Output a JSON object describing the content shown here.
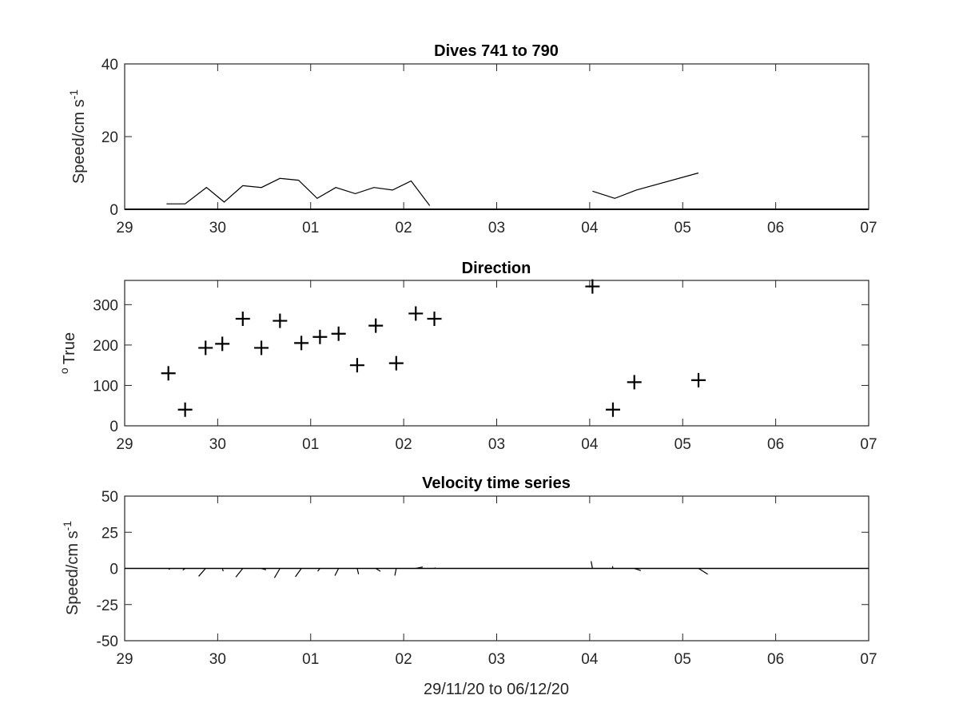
{
  "x_axis_label": "29/11/20 to 06/12/20",
  "x_tick_labels": [
    "29",
    "30",
    "01",
    "02",
    "03",
    "04",
    "05",
    "06",
    "07"
  ],
  "chart_data": [
    {
      "type": "line",
      "title": "Dives 741 to 790",
      "ylabel": "Speed/cm s",
      "ylabel_superscript": "-1",
      "xlim": [
        0,
        8
      ],
      "ylim": [
        0,
        40
      ],
      "yticks": [
        0,
        20,
        40
      ],
      "grid": false,
      "x_unit": "days from 29 Nov 2020",
      "series": [
        {
          "x": [
            0.45,
            0.65,
            0.88,
            1.07,
            1.27,
            1.47,
            1.67,
            1.87,
            2.07,
            2.27,
            2.48,
            2.68,
            2.88,
            3.08,
            3.28,
            3.48
          ],
          "values": [
            1.5,
            1.5,
            6.0,
            2.0,
            6.5,
            6.0,
            8.5,
            8.0,
            3.0,
            6.0,
            4.3,
            6.0,
            5.3,
            7.8,
            1.0,
            null
          ]
        },
        {
          "x": [
            5.03,
            5.27,
            5.5,
            6.17
          ],
          "values": [
            5.0,
            3.0,
            5.3,
            10.0
          ]
        }
      ],
      "baseline": 0
    },
    {
      "type": "scatter",
      "title": "Direction",
      "ylabel": "True",
      "ylabel_superscript": "o",
      "xlim": [
        0,
        8
      ],
      "ylim": [
        0,
        360
      ],
      "yticks": [
        0,
        100,
        200,
        300
      ],
      "grid": false,
      "marker": "+",
      "x": [
        0.47,
        0.65,
        0.87,
        1.05,
        1.27,
        1.47,
        1.67,
        1.9,
        2.1,
        2.3,
        2.5,
        2.7,
        2.92,
        3.13,
        3.33,
        5.03,
        5.25,
        5.48,
        6.17
      ],
      "values": [
        130,
        40,
        193,
        203,
        265,
        193,
        260,
        205,
        220,
        228,
        150,
        248,
        155,
        278,
        265,
        345,
        40,
        108,
        113
      ]
    },
    {
      "type": "quiver",
      "title": "Velocity time series",
      "ylabel": "Speed/cm s",
      "ylabel_superscript": "-1",
      "xlabel": "29/11/20 to 06/12/20",
      "xlim": [
        0,
        8
      ],
      "ylim": [
        -50,
        50
      ],
      "yticks": [
        50,
        25,
        0,
        -25,
        -50
      ],
      "grid": false,
      "series": [
        {
          "x": [
            0.47,
            0.65,
            0.87,
            1.05,
            1.27,
            1.47,
            1.67,
            1.9,
            2.1,
            2.3,
            2.5,
            2.7,
            2.92,
            3.13,
            3.33,
            5.03,
            5.25,
            5.48,
            6.17
          ],
          "u": [
            0.3,
            -0.5,
            -1.5,
            0.2,
            -1.5,
            1.0,
            -1.2,
            -1.3,
            -0.5,
            -0.8,
            0.3,
            1.0,
            -0.3,
            1.5,
            0.2,
            -0.3,
            -0.1,
            1.4,
            2.0
          ],
          "v": [
            -0.8,
            -1.2,
            -5.5,
            -2.0,
            -6.0,
            -1.0,
            -6.5,
            -5.8,
            -2.0,
            -5.0,
            -4.0,
            -2.0,
            -5.0,
            1.0,
            0.5,
            5.0,
            1.5,
            -1.5,
            -4.0
          ]
        }
      ],
      "baseline": 0
    }
  ]
}
